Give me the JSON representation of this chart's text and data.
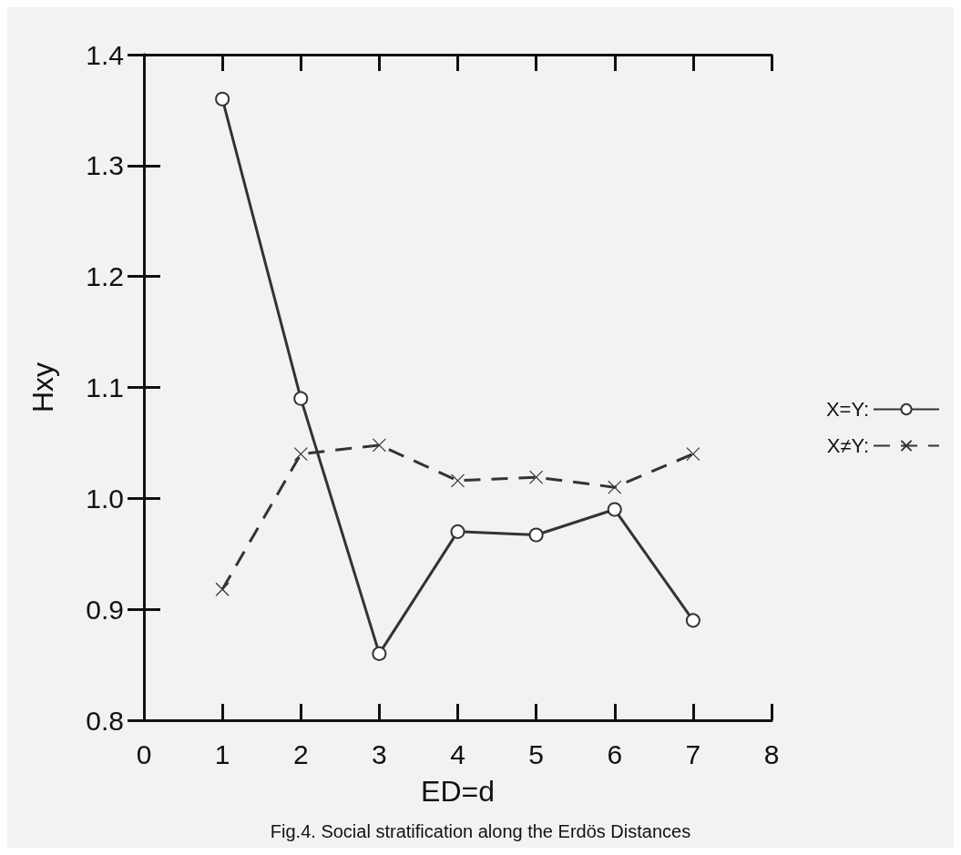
{
  "chart_data": {
    "type": "line",
    "xlabel": "ED=d",
    "ylabel": "Hxy",
    "annotations": [
      "Fig.4. Social stratification along the Erdös Distances"
    ],
    "x": [
      1,
      2,
      3,
      4,
      5,
      6,
      7
    ],
    "series": [
      {
        "name": "X=Y:",
        "color": "#333333",
        "marker": "circle",
        "line_style": "solid",
        "values": [
          1.36,
          1.09,
          0.86,
          0.97,
          0.967,
          0.99,
          0.89
        ]
      },
      {
        "name": "X≠Y:",
        "color": "#333333",
        "marker": "cross",
        "line_style": "dashed",
        "values": [
          0.918,
          1.04,
          1.048,
          1.016,
          1.019,
          1.01,
          1.04
        ]
      }
    ],
    "xlim": [
      0,
      8
    ],
    "xticks": [
      0,
      1,
      2,
      3,
      4,
      5,
      6,
      7,
      8
    ],
    "ylim": [
      0.8,
      1.4
    ],
    "yticks": [
      0.8,
      0.9,
      {
        "value": 1,
        "label": "1.0"
      },
      1.1,
      1.2,
      1.3,
      1.4
    ],
    "grid": false,
    "legend": "right"
  }
}
